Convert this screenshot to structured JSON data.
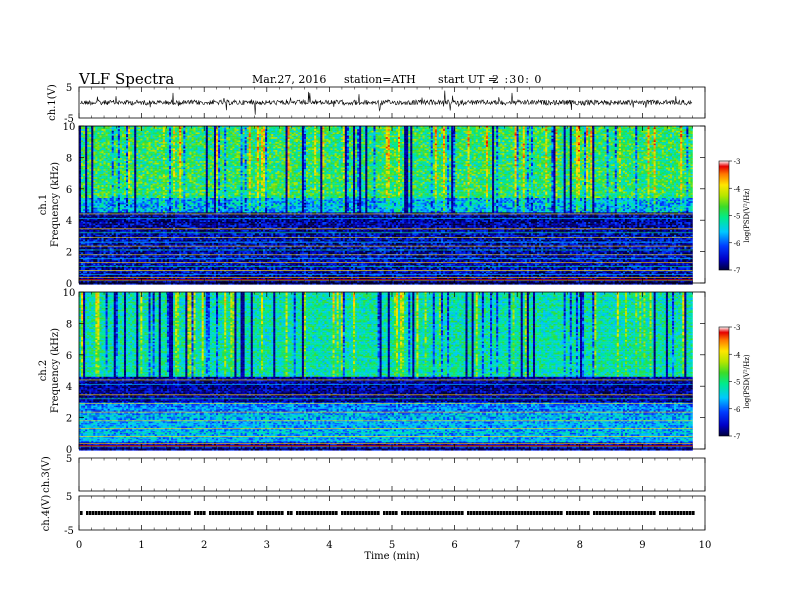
{
  "header": {
    "title": "VLF Spectra",
    "date": "Mar.27, 2016",
    "station": "station=ATH",
    "start_label": "start UT =",
    "start_time": "2 :30: 0"
  },
  "chart_data": [
    {
      "type": "line",
      "title": "",
      "ylabel": "ch.1(V)",
      "xlim": [
        0,
        10
      ],
      "ylim": [
        -5,
        5
      ],
      "yticks": [
        "5",
        "-5"
      ],
      "description_values": {
        "baseline": 0,
        "trace_extent_min": 9.8
      }
    },
    {
      "type": "heatmap",
      "ylabel": "ch.1",
      "ylabel2": "Frequency (kHz)",
      "xlim": [
        0,
        10
      ],
      "ylim": [
        0,
        10
      ],
      "yticks": [
        "0",
        "2",
        "4",
        "6",
        "8",
        "10"
      ],
      "data_extent_min": 9.8,
      "colorbar": {
        "label": "log(PSD(V²/Hz)",
        "ticks": [
          "-3",
          "-4",
          "-5",
          "-6",
          "-7"
        ],
        "range": [
          -7,
          -3
        ]
      },
      "mean_log_psd_by_band": [
        {
          "f_khz": [
            0,
            0.5
          ],
          "level": -6.8
        },
        {
          "f_khz": [
            0.5,
            3.2
          ],
          "level": -6.6
        },
        {
          "f_khz": [
            3.2,
            4.5
          ],
          "level": -6.7
        },
        {
          "f_khz": [
            4.5,
            5.5
          ],
          "level": -5.6
        },
        {
          "f_khz": [
            5.5,
            10
          ],
          "level": -4.9
        }
      ]
    },
    {
      "type": "heatmap",
      "ylabel": "ch.2",
      "ylabel2": "Frequency (kHz)",
      "xlim": [
        0,
        10
      ],
      "ylim": [
        0,
        10
      ],
      "yticks": [
        "0",
        "2",
        "4",
        "6",
        "8",
        "10"
      ],
      "data_extent_min": 9.8,
      "colorbar": {
        "label": "log(PSD(V²/Hz)",
        "ticks": [
          "-3",
          "-4",
          "-5",
          "-6",
          "-7"
        ],
        "range": [
          -7,
          -3
        ]
      },
      "mean_log_psd_by_band": [
        {
          "f_khz": [
            0,
            0.5
          ],
          "level": -6.5
        },
        {
          "f_khz": [
            0.5,
            2.3
          ],
          "level": -5.7
        },
        {
          "f_khz": [
            2.3,
            3.0
          ],
          "level": -5.9
        },
        {
          "f_khz": [
            3.0,
            4.6
          ],
          "level": -6.7
        },
        {
          "f_khz": [
            4.6,
            10
          ],
          "level": -5.2
        }
      ]
    },
    {
      "type": "line",
      "ylabel": "ch.3(V)",
      "xlim": [
        0,
        10
      ],
      "ylim": [
        -5,
        5
      ],
      "yticks": [
        "5"
      ],
      "description_values": {
        "baseline": null
      }
    },
    {
      "type": "line",
      "ylabel": "ch.4(V)",
      "xlabel": "Time (min)",
      "xlim": [
        0,
        10
      ],
      "ylim": [
        -5,
        5
      ],
      "yticks": [
        "5",
        "-5"
      ],
      "xticks": [
        "0",
        "1",
        "2",
        "3",
        "4",
        "5",
        "6",
        "7",
        "8",
        "9",
        "10"
      ],
      "description_values": {
        "baseline": 0,
        "trace_extent_min": 9.8
      }
    }
  ]
}
